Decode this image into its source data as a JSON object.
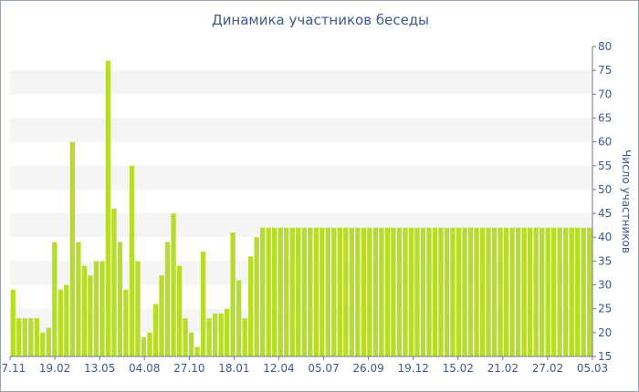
{
  "chart_data": {
    "type": "bar",
    "title": "Динамика участников беседы",
    "ylabel": "Число участников",
    "xlabel": "",
    "ylim": [
      15,
      80
    ],
    "y_ticks": [
      15,
      20,
      25,
      30,
      35,
      40,
      45,
      50,
      55,
      60,
      65,
      70,
      75,
      80
    ],
    "y_axis_side": "right",
    "grid": "alternating horizontal bands",
    "bar_color": "#b8dc2a",
    "band_color": "#f5f5f5",
    "x_tick_labels": [
      "27.11",
      "19.02",
      "13.05",
      "04.08",
      "27.10",
      "18.01",
      "12.04",
      "05.07",
      "26.09",
      "19.12",
      "15.02",
      "21.02",
      "27.02",
      "05.03"
    ],
    "values": [
      29,
      23,
      23,
      23,
      23,
      20,
      21,
      39,
      29,
      30,
      60,
      39,
      34,
      32,
      35,
      35,
      77,
      46,
      39,
      29,
      55,
      35,
      19,
      20,
      26,
      32,
      39,
      45,
      34,
      23,
      20,
      17,
      37,
      23,
      24,
      24,
      25,
      41,
      31,
      23,
      36,
      40,
      42,
      42,
      42,
      42,
      42,
      42,
      42,
      42,
      42,
      42,
      42,
      42,
      42,
      42,
      42,
      42,
      42,
      42,
      42,
      42,
      42,
      42,
      42,
      42,
      42,
      42,
      42,
      42,
      42,
      42,
      42,
      42,
      42,
      42,
      42,
      42,
      42,
      42,
      42,
      42,
      42,
      42,
      42,
      42,
      42,
      42,
      42,
      42,
      42,
      42,
      42,
      42,
      42,
      42,
      42,
      42
    ]
  }
}
